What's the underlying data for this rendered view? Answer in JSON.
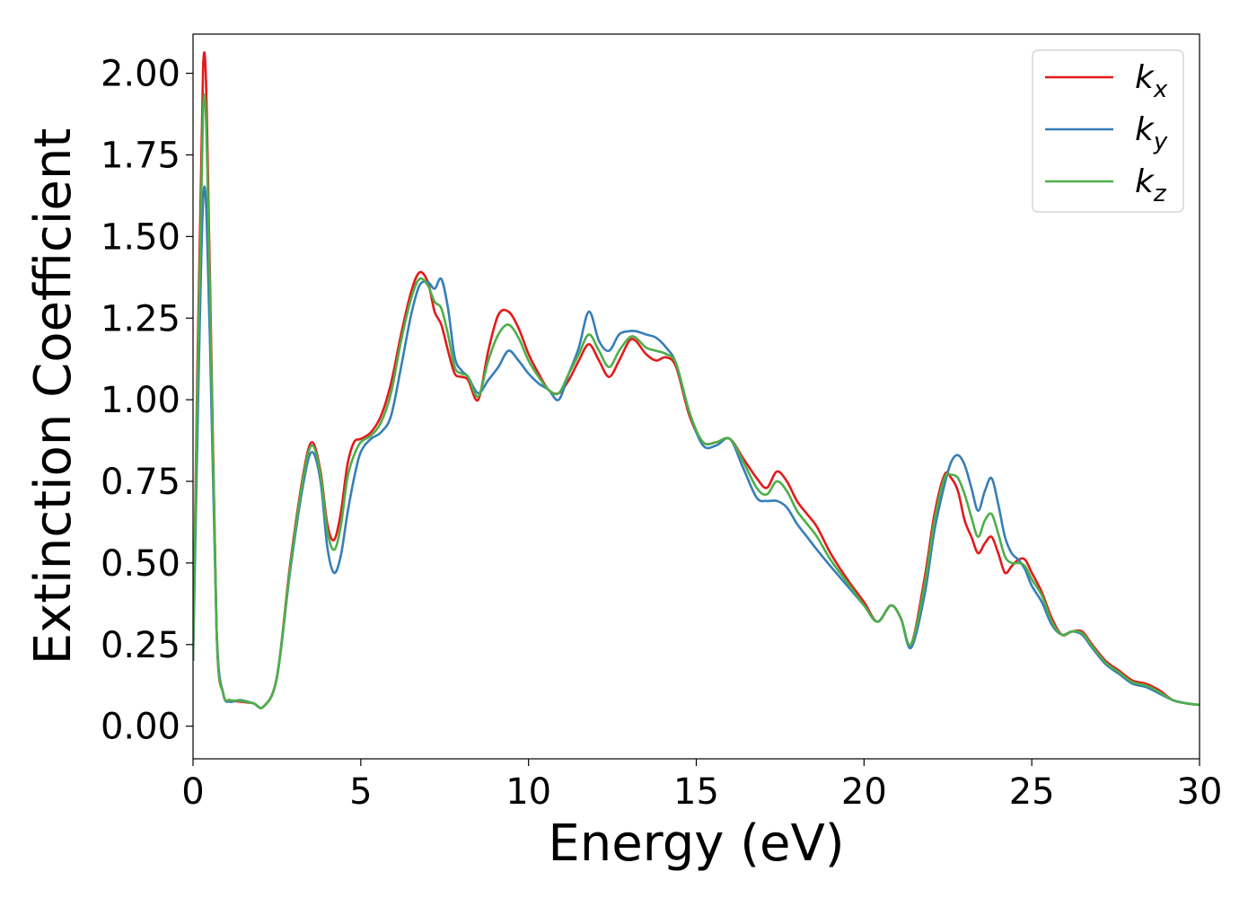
{
  "chart_data": {
    "type": "line",
    "xlabel": "Energy (eV)",
    "ylabel": "Extinction Coefficient",
    "xlim": [
      0,
      30
    ],
    "ylim": [
      -0.1,
      2.12
    ],
    "xticks": [
      "0",
      "5",
      "10",
      "15",
      "20",
      "25",
      "30"
    ],
    "yticks": [
      "0.00",
      "0.25",
      "0.50",
      "0.75",
      "1.00",
      "1.25",
      "1.50",
      "1.75",
      "2.00"
    ],
    "grid": false,
    "legend_position": "top-right",
    "series": [
      {
        "name": "k",
        "subscript": "x",
        "color": "#e41a1c",
        "x": [
          0,
          0.3,
          0.5,
          0.7,
          0.9,
          1.1,
          1.4,
          1.8,
          2.1,
          2.5,
          2.9,
          3.3,
          3.55,
          3.8,
          4.0,
          4.2,
          4.4,
          4.6,
          4.8,
          5.0,
          5.3,
          5.6,
          5.9,
          6.2,
          6.5,
          6.75,
          7.0,
          7.2,
          7.4,
          7.6,
          7.8,
          8.0,
          8.2,
          8.5,
          8.8,
          9.1,
          9.4,
          9.7,
          10.0,
          10.3,
          10.6,
          10.9,
          11.2,
          11.5,
          11.8,
          12.1,
          12.4,
          12.7,
          13.0,
          13.2,
          13.5,
          13.8,
          14.1,
          14.4,
          14.8,
          15.2,
          15.6,
          16.0,
          16.4,
          16.8,
          17.1,
          17.4,
          17.7,
          18.0,
          18.3,
          18.6,
          19.0,
          19.5,
          20.0,
          20.4,
          20.8,
          21.1,
          21.4,
          21.8,
          22.1,
          22.4,
          22.6,
          22.8,
          23.0,
          23.2,
          23.4,
          23.6,
          23.8,
          24.0,
          24.2,
          24.4,
          24.6,
          24.8,
          25.0,
          25.3,
          25.6,
          25.9,
          26.2,
          26.5,
          26.8,
          27.2,
          27.6,
          28.0,
          28.4,
          28.8,
          29.2,
          29.6,
          30.0
        ],
        "values": [
          0.2,
          2.02,
          1.4,
          0.3,
          0.1,
          0.08,
          0.075,
          0.07,
          0.06,
          0.15,
          0.5,
          0.78,
          0.87,
          0.78,
          0.62,
          0.57,
          0.65,
          0.8,
          0.87,
          0.88,
          0.9,
          0.95,
          1.05,
          1.2,
          1.33,
          1.39,
          1.36,
          1.27,
          1.23,
          1.15,
          1.08,
          1.07,
          1.06,
          1.0,
          1.15,
          1.26,
          1.27,
          1.22,
          1.14,
          1.08,
          1.03,
          1.02,
          1.06,
          1.12,
          1.17,
          1.12,
          1.07,
          1.12,
          1.18,
          1.18,
          1.14,
          1.12,
          1.13,
          1.1,
          0.95,
          0.87,
          0.87,
          0.88,
          0.82,
          0.76,
          0.73,
          0.78,
          0.75,
          0.69,
          0.65,
          0.61,
          0.53,
          0.45,
          0.38,
          0.32,
          0.37,
          0.33,
          0.25,
          0.45,
          0.65,
          0.77,
          0.76,
          0.72,
          0.63,
          0.58,
          0.53,
          0.56,
          0.58,
          0.53,
          0.47,
          0.49,
          0.51,
          0.51,
          0.47,
          0.41,
          0.33,
          0.28,
          0.29,
          0.29,
          0.25,
          0.2,
          0.17,
          0.14,
          0.13,
          0.11,
          0.08,
          0.07,
          0.065
        ]
      },
      {
        "name": "k",
        "subscript": "y",
        "color": "#377eb8",
        "x": [
          0,
          0.3,
          0.5,
          0.7,
          0.9,
          1.1,
          1.4,
          1.8,
          2.1,
          2.5,
          2.9,
          3.3,
          3.55,
          3.8,
          4.0,
          4.2,
          4.4,
          4.6,
          4.8,
          5.0,
          5.3,
          5.6,
          5.9,
          6.2,
          6.5,
          6.75,
          7.0,
          7.2,
          7.4,
          7.6,
          7.8,
          8.0,
          8.2,
          8.5,
          8.8,
          9.1,
          9.4,
          9.7,
          10.0,
          10.3,
          10.6,
          10.9,
          11.2,
          11.5,
          11.8,
          12.1,
          12.4,
          12.7,
          13.0,
          13.2,
          13.5,
          13.8,
          14.1,
          14.4,
          14.8,
          15.2,
          15.6,
          16.0,
          16.4,
          16.8,
          17.1,
          17.4,
          17.7,
          18.0,
          18.3,
          18.6,
          19.0,
          19.5,
          20.0,
          20.4,
          20.8,
          21.1,
          21.4,
          21.8,
          22.1,
          22.4,
          22.6,
          22.8,
          23.0,
          23.2,
          23.4,
          23.6,
          23.8,
          24.0,
          24.2,
          24.4,
          24.6,
          24.8,
          25.0,
          25.3,
          25.6,
          25.9,
          26.2,
          26.5,
          26.8,
          27.2,
          27.6,
          28.0,
          28.4,
          28.8,
          29.2,
          29.6,
          30.0
        ],
        "values": [
          0.2,
          1.61,
          1.2,
          0.3,
          0.1,
          0.075,
          0.08,
          0.07,
          0.06,
          0.15,
          0.48,
          0.75,
          0.84,
          0.75,
          0.55,
          0.47,
          0.52,
          0.65,
          0.76,
          0.84,
          0.88,
          0.9,
          0.95,
          1.1,
          1.26,
          1.35,
          1.36,
          1.34,
          1.37,
          1.28,
          1.13,
          1.09,
          1.07,
          1.02,
          1.06,
          1.1,
          1.15,
          1.12,
          1.08,
          1.05,
          1.03,
          1.0,
          1.08,
          1.16,
          1.27,
          1.18,
          1.15,
          1.2,
          1.21,
          1.21,
          1.2,
          1.19,
          1.16,
          1.11,
          0.96,
          0.86,
          0.86,
          0.88,
          0.79,
          0.7,
          0.69,
          0.69,
          0.67,
          0.62,
          0.58,
          0.54,
          0.49,
          0.43,
          0.37,
          0.32,
          0.37,
          0.33,
          0.24,
          0.4,
          0.6,
          0.74,
          0.81,
          0.83,
          0.8,
          0.73,
          0.66,
          0.72,
          0.76,
          0.68,
          0.58,
          0.53,
          0.51,
          0.48,
          0.43,
          0.38,
          0.31,
          0.28,
          0.29,
          0.28,
          0.24,
          0.19,
          0.16,
          0.13,
          0.12,
          0.1,
          0.08,
          0.07,
          0.065
        ]
      },
      {
        "name": "k",
        "subscript": "z",
        "color": "#4daf4a",
        "x": [
          0,
          0.3,
          0.5,
          0.7,
          0.9,
          1.1,
          1.4,
          1.8,
          2.1,
          2.5,
          2.9,
          3.3,
          3.55,
          3.8,
          4.0,
          4.2,
          4.4,
          4.6,
          4.8,
          5.0,
          5.3,
          5.6,
          5.9,
          6.2,
          6.5,
          6.75,
          7.0,
          7.2,
          7.4,
          7.6,
          7.8,
          8.0,
          8.2,
          8.5,
          8.8,
          9.1,
          9.4,
          9.7,
          10.0,
          10.3,
          10.6,
          10.9,
          11.2,
          11.5,
          11.8,
          12.1,
          12.4,
          12.7,
          13.0,
          13.2,
          13.5,
          13.8,
          14.1,
          14.4,
          14.8,
          15.2,
          15.6,
          16.0,
          16.4,
          16.8,
          17.1,
          17.4,
          17.7,
          18.0,
          18.3,
          18.6,
          19.0,
          19.5,
          20.0,
          20.4,
          20.8,
          21.1,
          21.4,
          21.8,
          22.1,
          22.4,
          22.6,
          22.8,
          23.0,
          23.2,
          23.4,
          23.6,
          23.8,
          24.0,
          24.2,
          24.4,
          24.6,
          24.8,
          25.0,
          25.3,
          25.6,
          25.9,
          26.2,
          26.5,
          26.8,
          27.2,
          27.6,
          28.0,
          28.4,
          28.8,
          29.2,
          29.6,
          30.0
        ],
        "values": [
          0.2,
          1.89,
          1.35,
          0.3,
          0.1,
          0.08,
          0.078,
          0.07,
          0.06,
          0.15,
          0.49,
          0.77,
          0.86,
          0.77,
          0.6,
          0.54,
          0.61,
          0.76,
          0.83,
          0.87,
          0.89,
          0.93,
          1.02,
          1.18,
          1.31,
          1.37,
          1.35,
          1.3,
          1.28,
          1.2,
          1.1,
          1.08,
          1.07,
          1.01,
          1.12,
          1.2,
          1.23,
          1.19,
          1.12,
          1.07,
          1.03,
          1.02,
          1.08,
          1.14,
          1.2,
          1.15,
          1.1,
          1.15,
          1.19,
          1.19,
          1.16,
          1.15,
          1.14,
          1.11,
          0.96,
          0.87,
          0.87,
          0.88,
          0.81,
          0.73,
          0.71,
          0.75,
          0.72,
          0.66,
          0.62,
          0.58,
          0.51,
          0.44,
          0.37,
          0.32,
          0.37,
          0.33,
          0.25,
          0.43,
          0.63,
          0.76,
          0.77,
          0.76,
          0.71,
          0.64,
          0.58,
          0.63,
          0.65,
          0.59,
          0.52,
          0.5,
          0.5,
          0.49,
          0.45,
          0.4,
          0.32,
          0.28,
          0.29,
          0.285,
          0.245,
          0.195,
          0.165,
          0.135,
          0.125,
          0.105,
          0.08,
          0.07,
          0.065
        ]
      }
    ]
  }
}
